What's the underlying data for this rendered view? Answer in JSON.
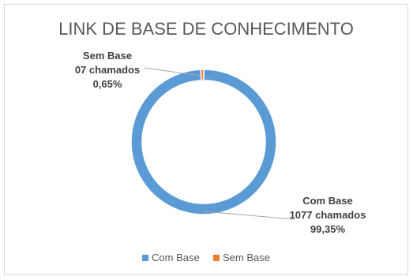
{
  "chart_data": {
    "type": "pie",
    "title": "LINK DE BASE DE CONHECIMENTO",
    "style": "doughnut",
    "slices": [
      {
        "name": "Com Base",
        "value": 1077,
        "percent": 99.35,
        "color": "#5b9bd5",
        "label_lines": [
          "Com Base",
          "1077  chamados",
          "99,35%"
        ]
      },
      {
        "name": "Sem Base",
        "value": 7,
        "percent": 0.65,
        "color": "#ed7d31",
        "label_lines": [
          "Sem Base",
          "07  chamados",
          "0,65%"
        ]
      }
    ],
    "legend": {
      "position": "bottom",
      "entries": [
        "Com Base",
        "Sem Base"
      ]
    }
  }
}
